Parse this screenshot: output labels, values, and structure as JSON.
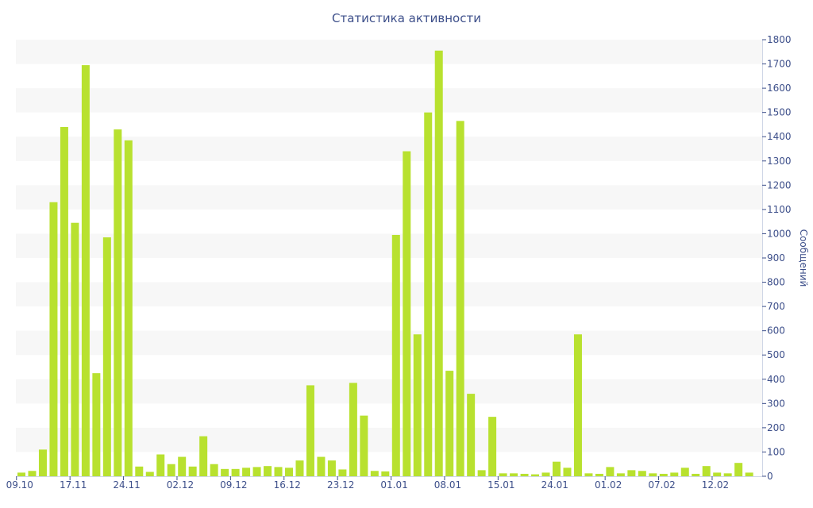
{
  "chart_data": {
    "type": "bar",
    "title": "Статистика активности",
    "ylabel": "Сообщений",
    "xlabel": "",
    "ylim": [
      0,
      1800
    ],
    "y_ticks": [
      0,
      100,
      200,
      300,
      400,
      500,
      600,
      700,
      800,
      900,
      1000,
      1100,
      1200,
      1300,
      1400,
      1500,
      1600,
      1700,
      1800
    ],
    "y_axis_position": "right",
    "grid": "alternating horizontal bands",
    "x_tick_labels": [
      "09.10",
      "17.11",
      "24.11",
      "02.12",
      "09.12",
      "16.12",
      "23.12",
      "01.01",
      "08.01",
      "15.01",
      "24.01",
      "01.02",
      "07.02",
      "12.02"
    ],
    "x_tick_label_bar_index": [
      0,
      5,
      10,
      15,
      20,
      25,
      30,
      35,
      40,
      45,
      50,
      55,
      60,
      65
    ],
    "bar_color": "#b8e12f",
    "values": [
      15,
      22,
      110,
      1130,
      1440,
      1045,
      1695,
      425,
      985,
      1430,
      1385,
      40,
      18,
      90,
      50,
      80,
      40,
      165,
      50,
      30,
      30,
      35,
      38,
      42,
      38,
      35,
      65,
      375,
      80,
      65,
      28,
      385,
      250,
      22,
      20,
      995,
      1340,
      585,
      1500,
      1755,
      435,
      1465,
      340,
      25,
      245,
      12,
      12,
      10,
      8,
      15,
      60,
      35,
      585,
      12,
      10,
      38,
      12,
      25,
      22,
      12,
      10,
      15,
      35,
      10,
      42,
      15,
      12,
      55,
      15
    ]
  }
}
